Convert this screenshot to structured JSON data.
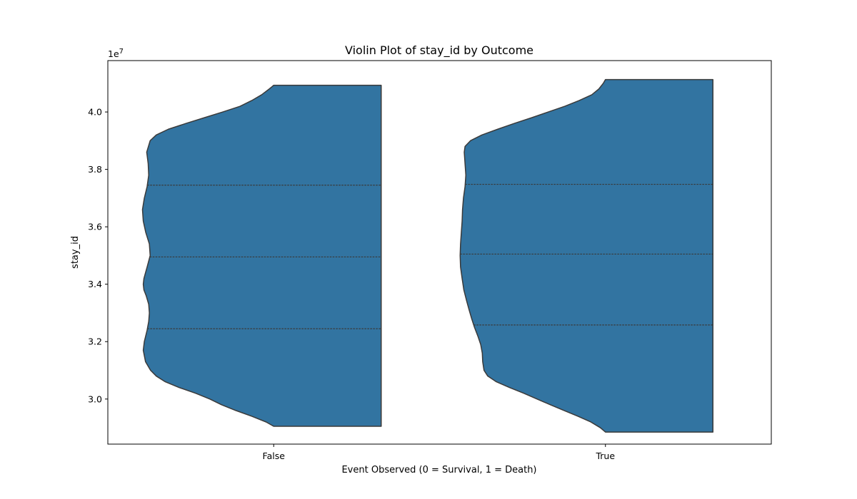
{
  "chart_data": {
    "type": "violin",
    "title": "Violin Plot of stay_id by Outcome",
    "xlabel": "Event Observed (0 = Survival, 1 = Death)",
    "ylabel": "stay_id",
    "y_scale_label": "1e7",
    "categories": [
      "False",
      "True"
    ],
    "y_ticks": [
      3.0,
      3.2,
      3.4,
      3.6,
      3.8,
      4.0
    ],
    "y_tick_labels": [
      "3.0",
      "3.2",
      "3.4",
      "3.6",
      "3.8",
      "4.0"
    ],
    "ylim": [
      2.843,
      4.179
    ],
    "split": "right-half-flat",
    "colors": {
      "fill": "#3274a1",
      "edge": "#3a3a3a",
      "quartile": "#3a3a3a"
    },
    "violins": [
      {
        "category": "False",
        "min": 2.905,
        "max": 4.093,
        "quartiles": [
          3.245,
          3.495,
          3.745
        ],
        "profile": [
          [
            2.905,
            0.0
          ],
          [
            2.92,
            0.057
          ],
          [
            2.94,
            0.165
          ],
          [
            2.96,
            0.285
          ],
          [
            2.98,
            0.393
          ],
          [
            3.0,
            0.481
          ],
          [
            3.02,
            0.588
          ],
          [
            3.04,
            0.712
          ],
          [
            3.06,
            0.817
          ],
          [
            3.08,
            0.885
          ],
          [
            3.1,
            0.928
          ],
          [
            3.13,
            0.966
          ],
          [
            3.17,
            0.983
          ],
          [
            3.2,
            0.975
          ],
          [
            3.24,
            0.954
          ],
          [
            3.27,
            0.942
          ],
          [
            3.3,
            0.937
          ],
          [
            3.33,
            0.942
          ],
          [
            3.36,
            0.961
          ],
          [
            3.38,
            0.978
          ],
          [
            3.4,
            0.983
          ],
          [
            3.42,
            0.978
          ],
          [
            3.44,
            0.966
          ],
          [
            3.46,
            0.954
          ],
          [
            3.5,
            0.931
          ],
          [
            3.54,
            0.937
          ],
          [
            3.58,
            0.964
          ],
          [
            3.62,
            0.983
          ],
          [
            3.66,
            0.989
          ],
          [
            3.7,
            0.975
          ],
          [
            3.74,
            0.954
          ],
          [
            3.78,
            0.942
          ],
          [
            3.82,
            0.946
          ],
          [
            3.86,
            0.957
          ],
          [
            3.9,
            0.931
          ],
          [
            3.92,
            0.885
          ],
          [
            3.94,
            0.794
          ],
          [
            3.96,
            0.662
          ],
          [
            3.98,
            0.523
          ],
          [
            4.0,
            0.384
          ],
          [
            4.02,
            0.253
          ],
          [
            4.04,
            0.165
          ],
          [
            4.06,
            0.091
          ],
          [
            4.08,
            0.034
          ],
          [
            4.093,
            0.0
          ]
        ]
      },
      {
        "category": "True",
        "min": 2.885,
        "max": 4.113,
        "quartiles": [
          3.258,
          3.505,
          3.748
        ],
        "profile": [
          [
            2.885,
            0.0
          ],
          [
            2.9,
            0.038
          ],
          [
            2.92,
            0.11
          ],
          [
            2.94,
            0.207
          ],
          [
            2.96,
            0.311
          ],
          [
            2.98,
            0.415
          ],
          [
            3.0,
            0.515
          ],
          [
            3.02,
            0.615
          ],
          [
            3.04,
            0.722
          ],
          [
            3.06,
            0.822
          ],
          [
            3.08,
            0.887
          ],
          [
            3.1,
            0.915
          ],
          [
            3.13,
            0.925
          ],
          [
            3.16,
            0.928
          ],
          [
            3.19,
            0.94
          ],
          [
            3.22,
            0.962
          ],
          [
            3.25,
            0.987
          ],
          [
            3.28,
            1.008
          ],
          [
            3.31,
            1.027
          ],
          [
            3.34,
            1.045
          ],
          [
            3.38,
            1.067
          ],
          [
            3.42,
            1.08
          ],
          [
            3.46,
            1.092
          ],
          [
            3.5,
            1.095
          ],
          [
            3.54,
            1.092
          ],
          [
            3.58,
            1.086
          ],
          [
            3.62,
            1.08
          ],
          [
            3.66,
            1.077
          ],
          [
            3.7,
            1.07
          ],
          [
            3.74,
            1.058
          ],
          [
            3.78,
            1.052
          ],
          [
            3.82,
            1.058
          ],
          [
            3.86,
            1.064
          ],
          [
            3.88,
            1.058
          ],
          [
            3.9,
            1.017
          ],
          [
            3.92,
            0.931
          ],
          [
            3.94,
            0.812
          ],
          [
            3.96,
            0.688
          ],
          [
            3.98,
            0.556
          ],
          [
            4.0,
            0.431
          ],
          [
            4.02,
            0.306
          ],
          [
            4.04,
            0.197
          ],
          [
            4.06,
            0.103
          ],
          [
            4.08,
            0.05
          ],
          [
            4.1,
            0.016
          ],
          [
            4.113,
            0.0
          ]
        ]
      }
    ]
  }
}
